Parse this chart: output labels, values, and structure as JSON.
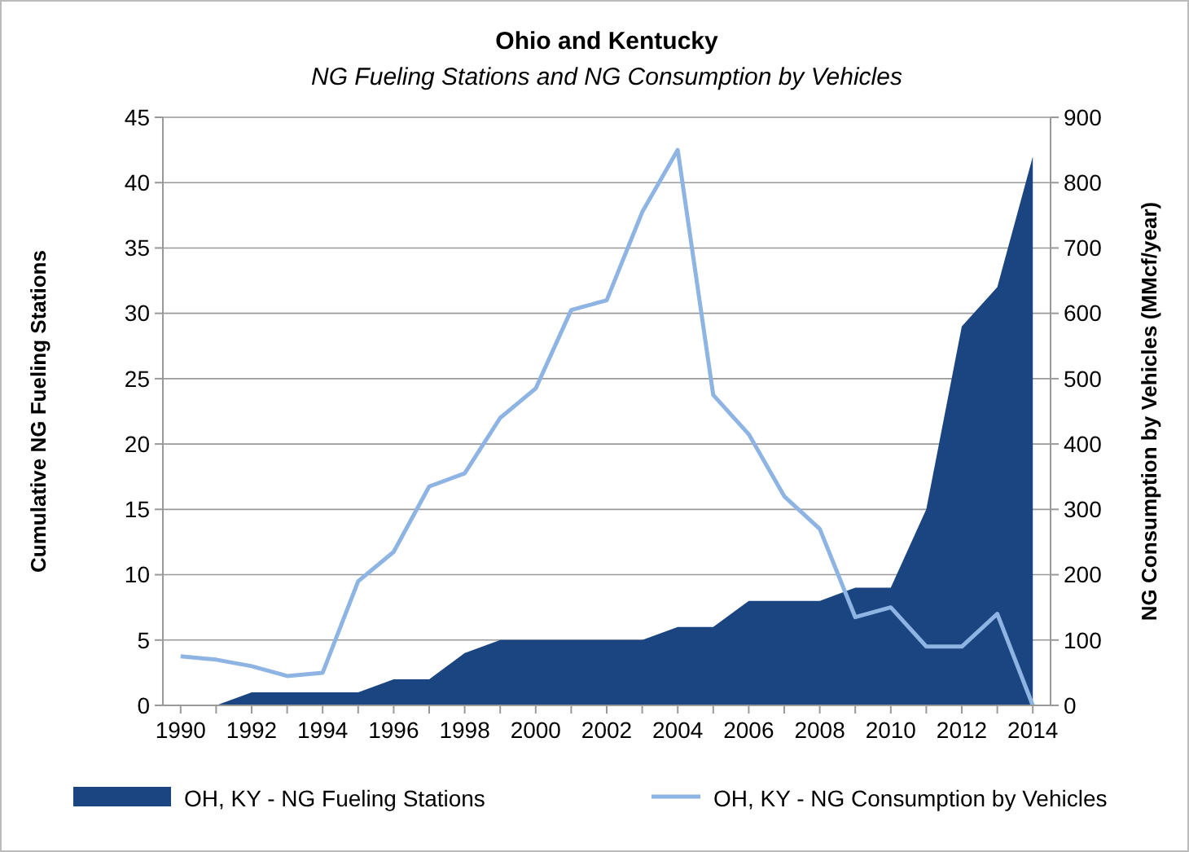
{
  "chart_data": {
    "type": "area",
    "title": "Ohio and Kentucky",
    "subtitle": "NG Fueling Stations and NG Consumption by Vehicles",
    "ylabel": "Cumulative NG Fueling Stations",
    "y2label": "NG Consumption by Vehicles (MMcf/year)",
    "x": [
      1990,
      1991,
      1992,
      1993,
      1994,
      1995,
      1996,
      1997,
      1998,
      1999,
      2000,
      2001,
      2002,
      2003,
      2004,
      2005,
      2006,
      2007,
      2008,
      2009,
      2010,
      2011,
      2012,
      2013,
      2014
    ],
    "series": [
      {
        "name": "OH, KY - NG Fueling Stations",
        "color": "#1a4580",
        "values": [
          0,
          0,
          1,
          1,
          1,
          1,
          2,
          2,
          4,
          5,
          5,
          5,
          5,
          5,
          6,
          6,
          8,
          8,
          8,
          9,
          9,
          15,
          29,
          32,
          42
        ]
      },
      {
        "name": "OH, KY - NG Consumption by Vehicles",
        "type": "line",
        "axis": "y2",
        "color": "#8eb4e3",
        "values": [
          75,
          70,
          60,
          45,
          50,
          190,
          235,
          335,
          355,
          440,
          485,
          605,
          620,
          755,
          850,
          475,
          415,
          320,
          270,
          135,
          150,
          90,
          90,
          140,
          0
        ]
      }
    ],
    "xlim": [
      1989.5,
      2014.5
    ],
    "xticks": [
      1990,
      {
        "value": 1991,
        "label": null
      },
      1992,
      {
        "value": 1993,
        "label": null
      },
      1994,
      {
        "value": 1995,
        "label": null
      },
      1996,
      {
        "value": 1997,
        "label": null
      },
      1998,
      {
        "value": 1999,
        "label": null
      },
      2000,
      {
        "value": 2001,
        "label": null
      },
      2002,
      {
        "value": 2003,
        "label": null
      },
      2004,
      {
        "value": 2005,
        "label": null
      },
      2006,
      {
        "value": 2007,
        "label": null
      },
      2008,
      {
        "value": 2009,
        "label": null
      },
      2010,
      {
        "value": 2011,
        "label": null
      },
      2012,
      {
        "value": 2013,
        "label": null
      },
      2014
    ],
    "ylim": [
      0,
      45
    ],
    "yticks": [
      0,
      5,
      10,
      15,
      20,
      25,
      30,
      35,
      40,
      45
    ],
    "y2lim": [
      0,
      900
    ],
    "y2ticks": [
      0,
      100,
      200,
      300,
      400,
      500,
      600,
      700,
      800,
      900
    ],
    "grid": "y",
    "legend": "bottom"
  }
}
